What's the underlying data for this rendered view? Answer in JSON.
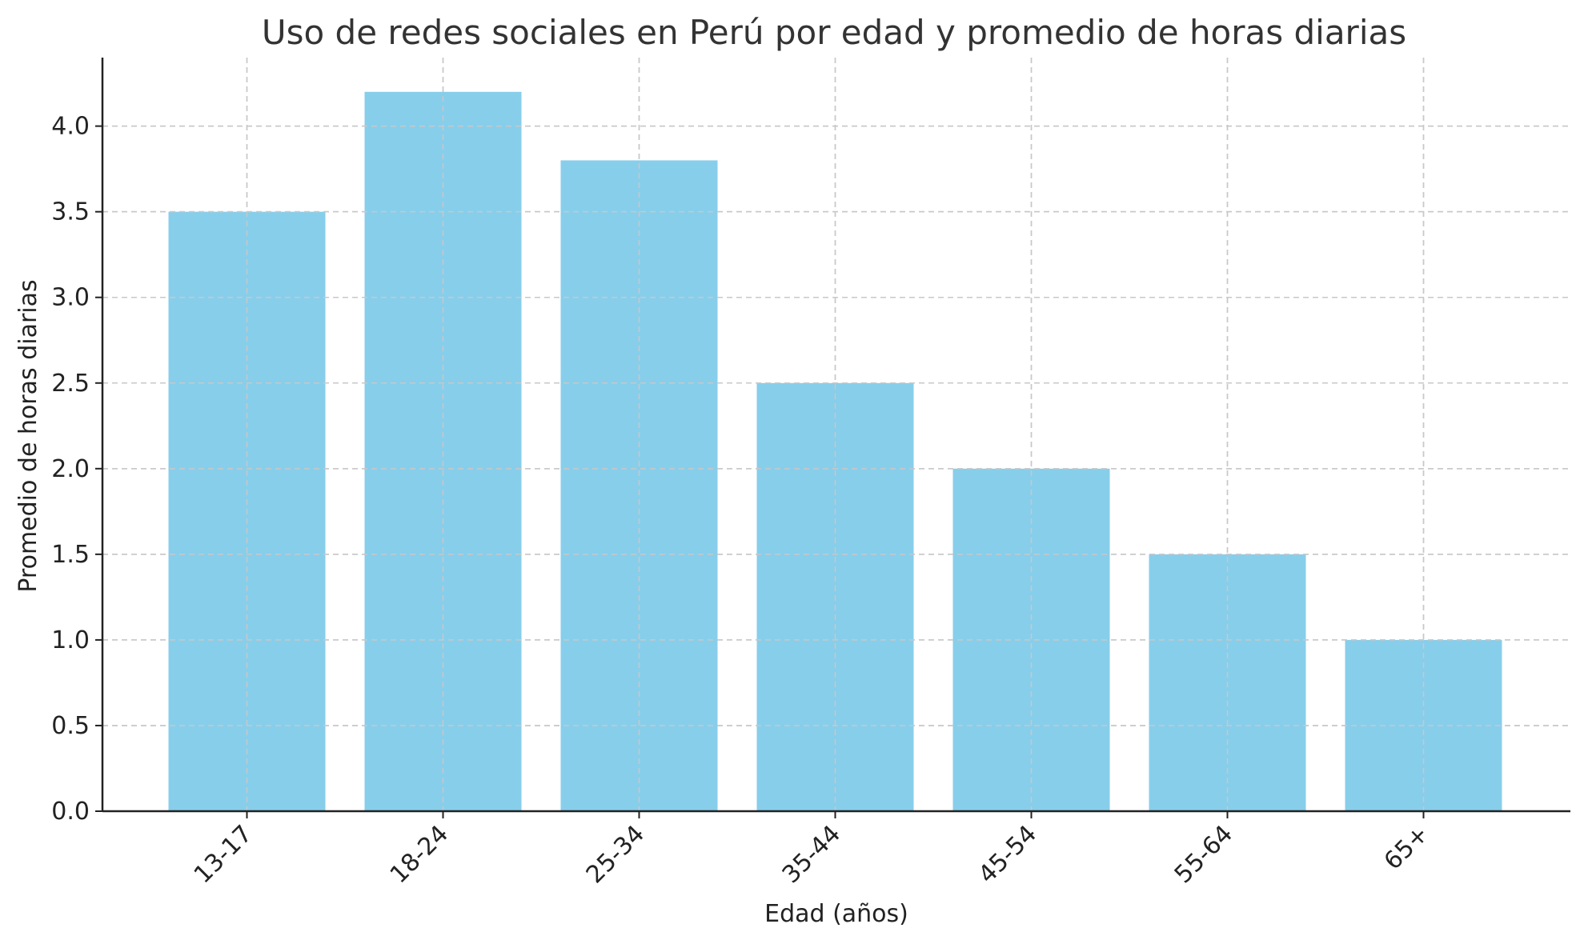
{
  "chart_data": {
    "type": "bar",
    "title": "Uso de redes sociales en Perú por edad y promedio de horas diarias",
    "xlabel": "Edad (años)",
    "ylabel": "Promedio de horas diarias",
    "categories": [
      "13-17",
      "18-24",
      "25-34",
      "35-44",
      "45-54",
      "55-64",
      "65+"
    ],
    "values": [
      3.5,
      4.2,
      3.8,
      2.5,
      2.0,
      1.5,
      1.0
    ],
    "ylim": [
      0,
      4.4
    ],
    "yticks": [
      "0.0",
      "0.5",
      "1.0",
      "1.5",
      "2.0",
      "2.5",
      "3.0",
      "3.5",
      "4.0"
    ],
    "bar_color": "#87ceeb",
    "grid": true,
    "legend": false
  }
}
